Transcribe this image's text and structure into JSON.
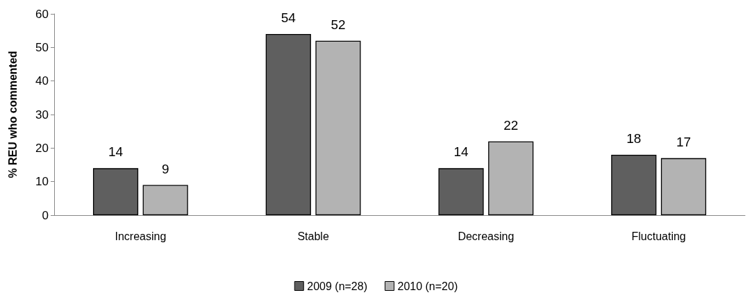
{
  "chart_data": {
    "type": "bar",
    "ylabel": "% REU who commented",
    "categories": [
      "Increasing",
      "Stable",
      "Decreasing",
      "Fluctuating"
    ],
    "series": [
      {
        "name": "2009 (n=28)",
        "color": "#5f5f5f",
        "values": [
          14,
          54,
          14,
          18
        ]
      },
      {
        "name": "2010 (n=20)",
        "color": "#b3b3b3",
        "values": [
          9,
          52,
          22,
          17
        ]
      }
    ],
    "ylim": [
      0,
      60
    ],
    "yticks": [
      0,
      10,
      20,
      30,
      40,
      50,
      60
    ],
    "grid": false,
    "legend": "bottom",
    "data_labels": true
  }
}
